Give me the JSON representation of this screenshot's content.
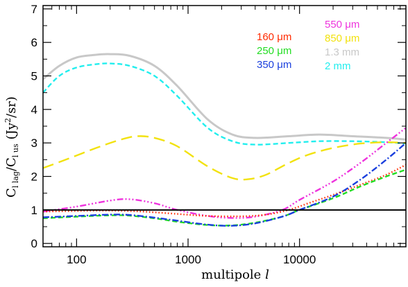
{
  "chart_data": {
    "type": "line",
    "xlabel": "multipole l",
    "ylabel": "C_l lag / C_l us (Jy²/sr)",
    "ylabel_parts": {
      "c1": "C",
      "s1": "l lag",
      "slash": "/",
      "c2": "C",
      "s2": "l us",
      "unit": "(Jy",
      "exp": "2",
      "unit_end": "/sr)"
    },
    "xscale": "log",
    "xlim": [
      50,
      90000
    ],
    "ylim": [
      -0.1,
      7.1
    ],
    "x_ticks": [
      {
        "value": 100,
        "label": "100"
      },
      {
        "value": 1000,
        "label": "1000"
      },
      {
        "value": 10000,
        "label": "10000"
      }
    ],
    "y_ticks": [
      {
        "value": 0,
        "label": "0"
      },
      {
        "value": 1,
        "label": "1"
      },
      {
        "value": 2,
        "label": "2"
      },
      {
        "value": 3,
        "label": "3"
      },
      {
        "value": 4,
        "label": "4"
      },
      {
        "value": 5,
        "label": "5"
      },
      {
        "value": 6,
        "label": "6"
      },
      {
        "value": 7,
        "label": "7"
      }
    ],
    "reference_line": {
      "y": 1,
      "color": "#000000"
    },
    "legend_position": "top-right",
    "series": [
      {
        "name": "160 μm",
        "color": "#ff2a00",
        "dash": "dotted",
        "x": [
          50,
          100,
          200,
          400,
          800,
          1500,
          3000,
          5000,
          8000,
          12000,
          20000,
          35000,
          60000,
          90000
        ],
        "y": [
          0.95,
          0.97,
          0.98,
          0.95,
          0.88,
          0.82,
          0.81,
          0.86,
          1.0,
          1.2,
          1.45,
          1.75,
          2.05,
          2.35
        ]
      },
      {
        "name": "250 μm",
        "color": "#22dd22",
        "dash": "dashed",
        "x": [
          50,
          100,
          200,
          300,
          500,
          800,
          1500,
          2500,
          4000,
          7000,
          10000,
          20000,
          35000,
          60000,
          90000
        ],
        "y": [
          0.75,
          0.8,
          0.84,
          0.83,
          0.75,
          0.65,
          0.55,
          0.54,
          0.62,
          0.8,
          1.0,
          1.35,
          1.7,
          2.0,
          2.2
        ]
      },
      {
        "name": "350 μm",
        "color": "#1a3fdd",
        "dash": "dashdot",
        "x": [
          50,
          100,
          200,
          300,
          500,
          800,
          1500,
          2500,
          4000,
          7000,
          10000,
          20000,
          35000,
          60000,
          90000
        ],
        "y": [
          0.78,
          0.82,
          0.86,
          0.85,
          0.77,
          0.68,
          0.56,
          0.53,
          0.6,
          0.8,
          1.0,
          1.4,
          1.9,
          2.5,
          3.0
        ]
      },
      {
        "name": "550 μm",
        "color": "#ee33dd",
        "dash": "dashdotdotdot",
        "x": [
          50,
          100,
          200,
          300,
          500,
          800,
          1500,
          2500,
          4000,
          7000,
          10000,
          20000,
          35000,
          60000,
          90000
        ],
        "y": [
          0.95,
          1.1,
          1.28,
          1.32,
          1.2,
          1.0,
          0.82,
          0.76,
          0.8,
          1.0,
          1.3,
          1.85,
          2.4,
          3.0,
          3.45
        ]
      },
      {
        "name": "850 μm",
        "color": "#f2e20f",
        "dash": "longdash",
        "x": [
          50,
          80,
          150,
          250,
          350,
          500,
          800,
          1500,
          2500,
          3500,
          5000,
          8000,
          12000,
          20000,
          35000,
          60000,
          90000
        ],
        "y": [
          2.25,
          2.5,
          2.85,
          3.1,
          3.2,
          3.15,
          2.9,
          2.3,
          1.95,
          1.92,
          2.05,
          2.4,
          2.65,
          2.85,
          2.98,
          3.02,
          3.0
        ]
      },
      {
        "name": "1.3 mm",
        "color": "#c8c8c8",
        "dash": "solid",
        "x": [
          50,
          70,
          100,
          150,
          200,
          300,
          500,
          800,
          1500,
          2500,
          4000,
          8000,
          15000,
          30000,
          60000,
          90000
        ],
        "y": [
          4.9,
          5.3,
          5.55,
          5.63,
          5.65,
          5.6,
          5.3,
          4.7,
          3.7,
          3.25,
          3.15,
          3.2,
          3.25,
          3.2,
          3.15,
          3.1
        ]
      },
      {
        "name": "2 mm",
        "color": "#22eeee",
        "dash": "dashed",
        "x": [
          50,
          70,
          100,
          150,
          200,
          300,
          500,
          800,
          1500,
          2500,
          4000,
          8000,
          15000,
          30000,
          60000,
          90000
        ],
        "y": [
          4.5,
          5.0,
          5.25,
          5.35,
          5.37,
          5.3,
          5.0,
          4.4,
          3.45,
          3.05,
          2.95,
          3.0,
          3.05,
          3.05,
          3.02,
          2.98
        ]
      }
    ]
  }
}
